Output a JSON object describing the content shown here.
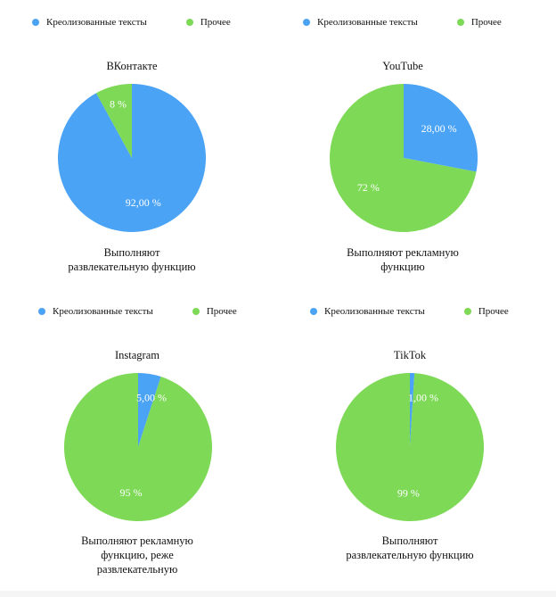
{
  "colors": {
    "creolized": "#4aa3f5",
    "other": "#7ed957"
  },
  "chart_data": [
    {
      "type": "pie",
      "title": "ВКонтакте",
      "legend": [
        "Креолизованные тексты",
        "Прочее"
      ],
      "slices": [
        {
          "name": "Креолизованные тексты",
          "value": 92,
          "label": "92,00 %"
        },
        {
          "name": "Прочее",
          "value": 8,
          "label": "8 %"
        }
      ],
      "caption": [
        "Выполняют",
        "развлекательную функцию"
      ]
    },
    {
      "type": "pie",
      "title": "YouTube",
      "legend": [
        "Креолизованные тексты",
        "Прочее"
      ],
      "slices": [
        {
          "name": "Креолизованные тексты",
          "value": 28,
          "label": "28,00 %"
        },
        {
          "name": "Прочее",
          "value": 72,
          "label": "72 %"
        }
      ],
      "caption": [
        "Выполняют рекламную",
        "функцию"
      ]
    },
    {
      "type": "pie",
      "title": "Instagram",
      "legend": [
        "Креолизованные тексты",
        "Прочее"
      ],
      "slices": [
        {
          "name": "Креолизованные тексты",
          "value": 5,
          "label": "5,00 %"
        },
        {
          "name": "Прочее",
          "value": 95,
          "label": "95 %"
        }
      ],
      "caption": [
        "Выполняют рекламную",
        "функцию, реже",
        "развлекательную"
      ]
    },
    {
      "type": "pie",
      "title": "TikTok",
      "legend": [
        "Креолизованные тексты",
        "Прочее"
      ],
      "slices": [
        {
          "name": "Креолизованные тексты",
          "value": 1,
          "label": "1,00 %"
        },
        {
          "name": "Прочее",
          "value": 99,
          "label": "99 %"
        }
      ],
      "caption": [
        "Выполняют",
        "развлекательную функцию"
      ]
    }
  ]
}
